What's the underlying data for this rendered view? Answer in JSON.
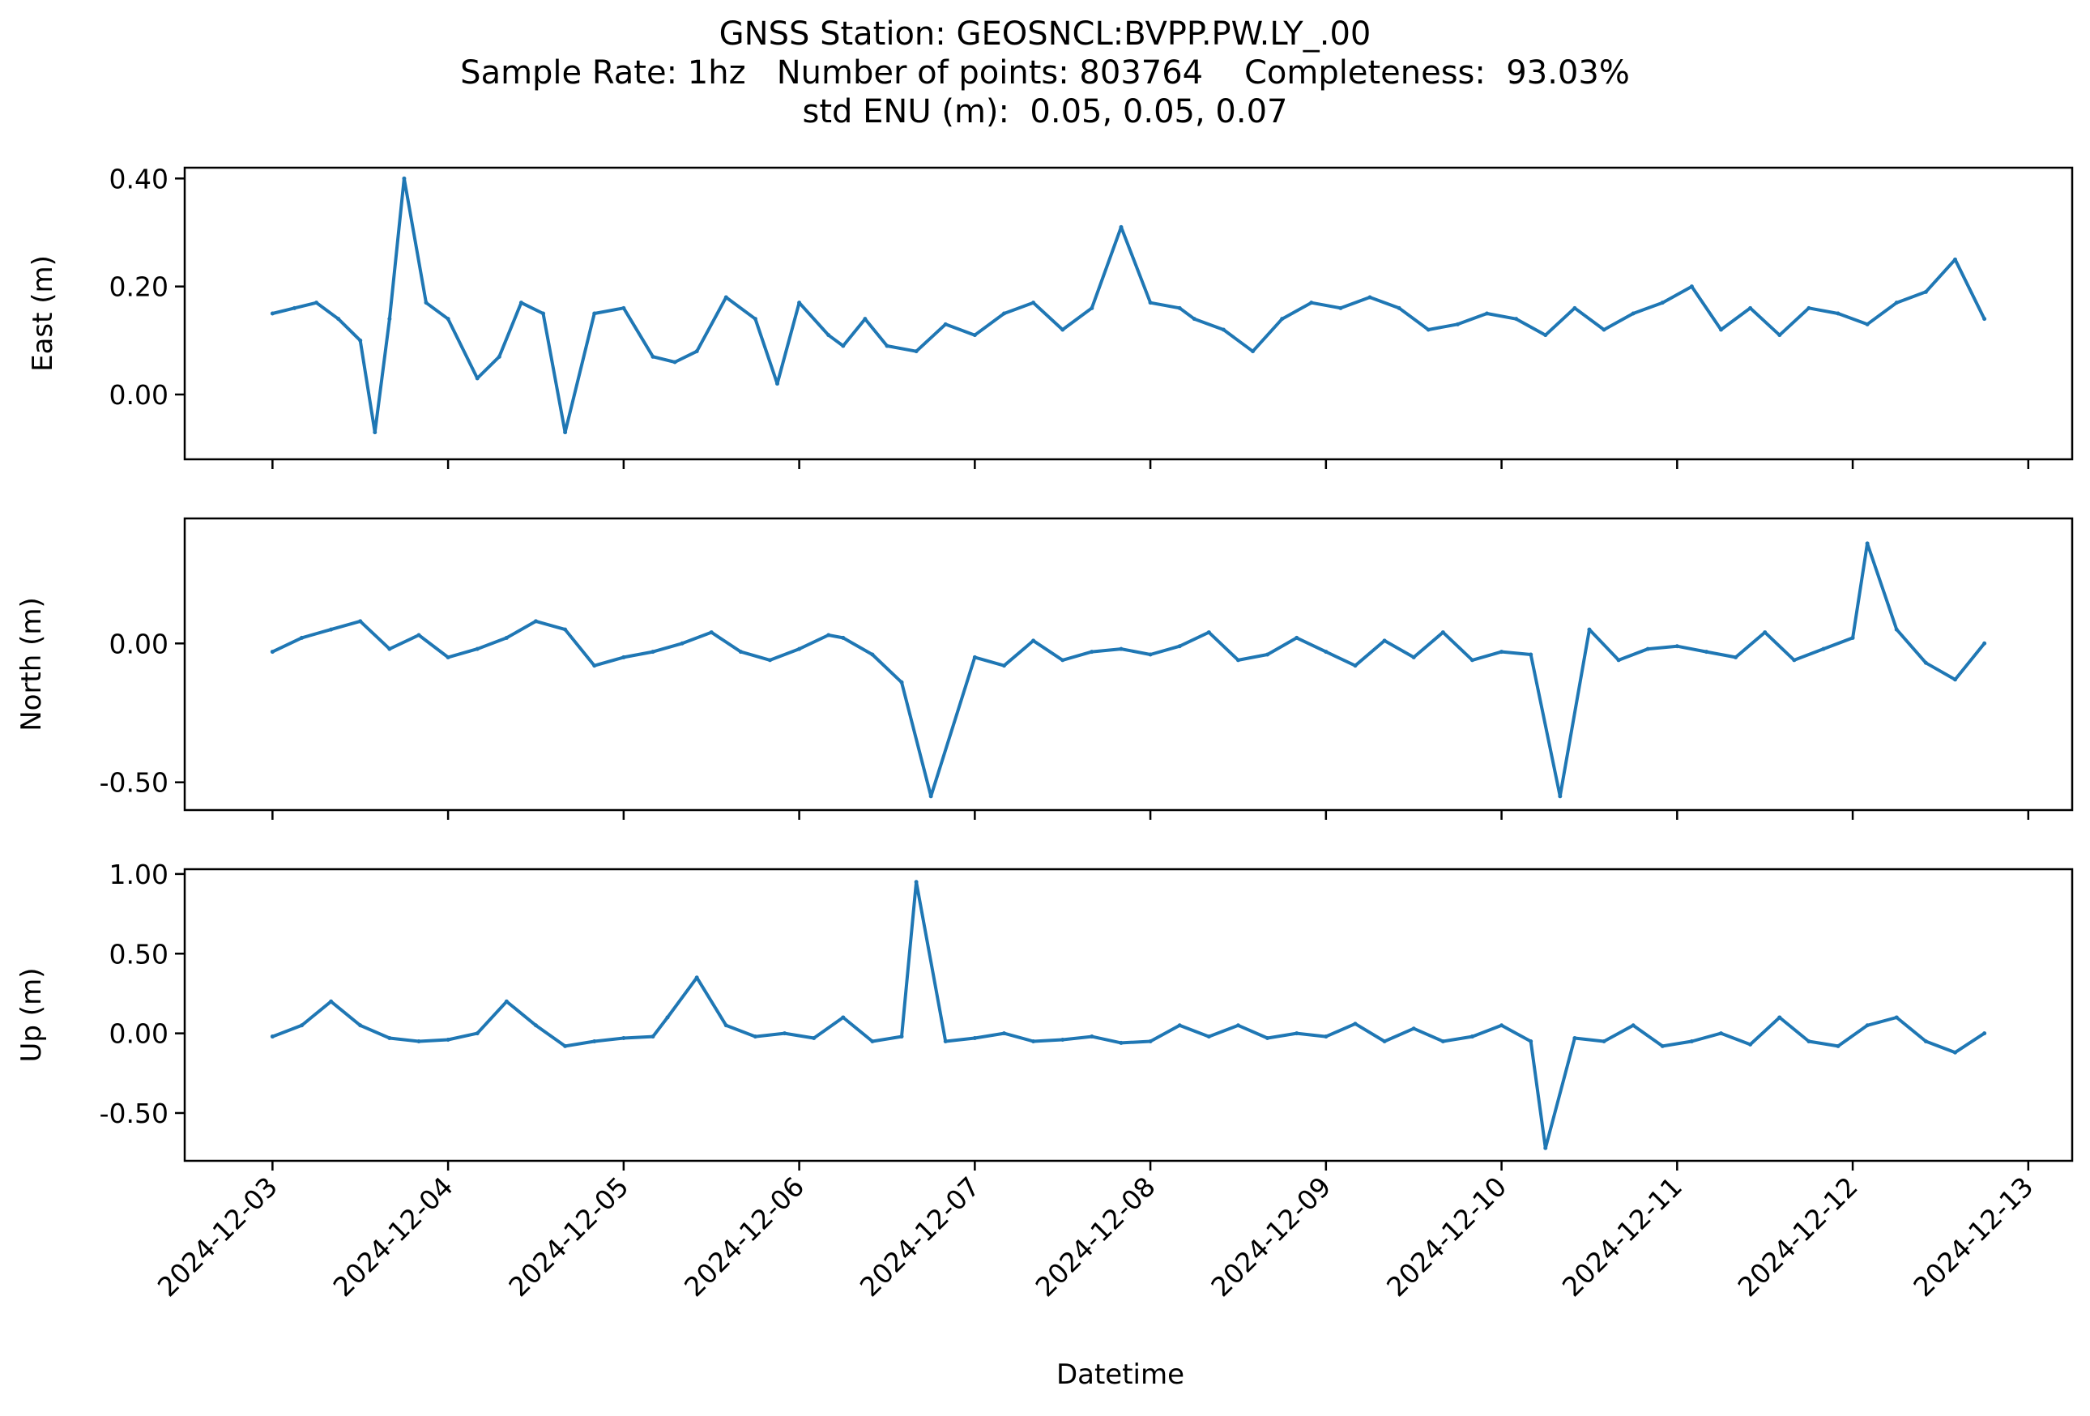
{
  "title_lines": [
    "GNSS Station: GEOSNCL:BVPP.PW.LY_.00",
    "Sample Rate: 1hz   Number of points: 803764    Completeness:  93.03%",
    "std ENU (m):  0.05, 0.05, 0.07"
  ],
  "colors": {
    "series": "#1f77b4",
    "axes": "#000000",
    "background": "#ffffff"
  },
  "chart_data": [
    {
      "type": "line",
      "ylabel": "East (m)",
      "xlabel": "",
      "ylim": [
        -0.12,
        0.42
      ],
      "yticks": [
        0.0,
        0.2,
        0.4
      ],
      "ytick_labels": [
        "0.00",
        "0.20",
        "0.40"
      ],
      "xlim": [
        "2024-12-02T12:00",
        "2024-12-13T06:00"
      ],
      "x_tick_labels_visible": false,
      "series": [
        {
          "x": [
            "2024-12-03T00:00",
            "2024-12-03T03:00",
            "2024-12-03T06:00",
            "2024-12-03T09:00",
            "2024-12-03T12:00",
            "2024-12-03T14:00",
            "2024-12-03T16:00",
            "2024-12-03T18:00",
            "2024-12-03T21:00",
            "2024-12-04T00:00",
            "2024-12-04T04:00",
            "2024-12-04T07:00",
            "2024-12-04T10:00",
            "2024-12-04T13:00",
            "2024-12-04T16:00",
            "2024-12-04T20:00",
            "2024-12-05T00:00",
            "2024-12-05T04:00",
            "2024-12-05T07:00",
            "2024-12-05T10:00",
            "2024-12-05T14:00",
            "2024-12-05T18:00",
            "2024-12-05T21:00",
            "2024-12-06T00:00",
            "2024-12-06T04:00",
            "2024-12-06T06:00",
            "2024-12-06T09:00",
            "2024-12-06T12:00",
            "2024-12-06T16:00",
            "2024-12-06T20:00",
            "2024-12-07T00:00",
            "2024-12-07T04:00",
            "2024-12-07T08:00",
            "2024-12-07T12:00",
            "2024-12-07T16:00",
            "2024-12-07T20:00",
            "2024-12-08T00:00",
            "2024-12-08T04:00",
            "2024-12-08T06:00",
            "2024-12-08T10:00",
            "2024-12-08T14:00",
            "2024-12-08T18:00",
            "2024-12-08T22:00",
            "2024-12-09T02:00",
            "2024-12-09T06:00",
            "2024-12-09T10:00",
            "2024-12-09T14:00",
            "2024-12-09T18:00",
            "2024-12-09T22:00",
            "2024-12-10T02:00",
            "2024-12-10T06:00",
            "2024-12-10T10:00",
            "2024-12-10T14:00",
            "2024-12-10T18:00",
            "2024-12-10T22:00",
            "2024-12-11T02:00",
            "2024-12-11T06:00",
            "2024-12-11T10:00",
            "2024-12-11T14:00",
            "2024-12-11T18:00",
            "2024-12-11T22:00",
            "2024-12-12T02:00",
            "2024-12-12T06:00",
            "2024-12-12T10:00",
            "2024-12-12T14:00",
            "2024-12-12T18:00"
          ],
          "values": [
            0.15,
            0.16,
            0.17,
            0.14,
            0.1,
            -0.07,
            0.14,
            0.4,
            0.17,
            0.14,
            0.03,
            0.07,
            0.17,
            0.15,
            -0.07,
            0.15,
            0.16,
            0.07,
            0.06,
            0.08,
            0.18,
            0.14,
            0.02,
            0.17,
            0.11,
            0.09,
            0.14,
            0.09,
            0.08,
            0.13,
            0.11,
            0.15,
            0.17,
            0.12,
            0.16,
            0.31,
            0.17,
            0.16,
            0.14,
            0.12,
            0.08,
            0.14,
            0.17,
            0.16,
            0.18,
            0.16,
            0.12,
            0.13,
            0.15,
            0.14,
            0.11,
            0.16,
            0.12,
            0.15,
            0.17,
            0.2,
            0.12,
            0.16,
            0.11,
            0.16,
            0.15,
            0.13,
            0.17,
            0.19,
            0.25,
            0.14
          ]
        }
      ]
    },
    {
      "type": "line",
      "ylabel": "North (m)",
      "xlabel": "",
      "ylim": [
        -0.6,
        0.45
      ],
      "yticks": [
        -0.5,
        0.0
      ],
      "ytick_labels": [
        "-0.50",
        "0.00"
      ],
      "xlim": [
        "2024-12-02T12:00",
        "2024-12-13T06:00"
      ],
      "x_tick_labels_visible": false,
      "series": [
        {
          "x": [
            "2024-12-03T00:00",
            "2024-12-03T04:00",
            "2024-12-03T08:00",
            "2024-12-03T12:00",
            "2024-12-03T16:00",
            "2024-12-03T20:00",
            "2024-12-04T00:00",
            "2024-12-04T04:00",
            "2024-12-04T08:00",
            "2024-12-04T12:00",
            "2024-12-04T16:00",
            "2024-12-04T20:00",
            "2024-12-05T00:00",
            "2024-12-05T04:00",
            "2024-12-05T08:00",
            "2024-12-05T12:00",
            "2024-12-05T16:00",
            "2024-12-05T20:00",
            "2024-12-06T00:00",
            "2024-12-06T04:00",
            "2024-12-06T06:00",
            "2024-12-06T10:00",
            "2024-12-06T14:00",
            "2024-12-06T18:00",
            "2024-12-07T00:00",
            "2024-12-07T04:00",
            "2024-12-07T08:00",
            "2024-12-07T12:00",
            "2024-12-07T16:00",
            "2024-12-07T20:00",
            "2024-12-08T00:00",
            "2024-12-08T04:00",
            "2024-12-08T08:00",
            "2024-12-08T12:00",
            "2024-12-08T16:00",
            "2024-12-08T20:00",
            "2024-12-09T00:00",
            "2024-12-09T04:00",
            "2024-12-09T08:00",
            "2024-12-09T12:00",
            "2024-12-09T16:00",
            "2024-12-09T20:00",
            "2024-12-10T00:00",
            "2024-12-10T04:00",
            "2024-12-10T08:00",
            "2024-12-10T12:00",
            "2024-12-10T16:00",
            "2024-12-10T20:00",
            "2024-12-11T00:00",
            "2024-12-11T04:00",
            "2024-12-11T08:00",
            "2024-12-11T12:00",
            "2024-12-11T16:00",
            "2024-12-11T20:00",
            "2024-12-12T00:00",
            "2024-12-12T02:00",
            "2024-12-12T06:00",
            "2024-12-12T10:00",
            "2024-12-12T14:00",
            "2024-12-12T18:00"
          ],
          "values": [
            -0.03,
            0.02,
            0.05,
            0.08,
            -0.02,
            0.03,
            -0.05,
            -0.02,
            0.02,
            0.08,
            0.05,
            -0.08,
            -0.05,
            -0.03,
            0.0,
            0.04,
            -0.03,
            -0.06,
            -0.02,
            0.03,
            0.02,
            -0.04,
            -0.14,
            -0.55,
            -0.05,
            -0.08,
            0.01,
            -0.06,
            -0.03,
            -0.02,
            -0.04,
            -0.01,
            0.04,
            -0.06,
            -0.04,
            0.02,
            -0.03,
            -0.08,
            0.01,
            -0.05,
            0.04,
            -0.06,
            -0.03,
            -0.04,
            -0.55,
            0.05,
            -0.06,
            -0.02,
            -0.01,
            -0.03,
            -0.05,
            0.04,
            -0.06,
            -0.02,
            0.02,
            0.36,
            0.05,
            -0.07,
            -0.13,
            0.0
          ]
        }
      ]
    },
    {
      "type": "line",
      "ylabel": "Up (m)",
      "xlabel": "Datetime",
      "ylim": [
        -0.8,
        1.03
      ],
      "yticks": [
        -0.5,
        0.0,
        0.5,
        1.0
      ],
      "ytick_labels": [
        "-0.50",
        "0.00",
        "0.50",
        "1.00"
      ],
      "xlim": [
        "2024-12-02T12:00",
        "2024-12-13T06:00"
      ],
      "x_ticks": [
        "2024-12-03",
        "2024-12-04",
        "2024-12-05",
        "2024-12-06",
        "2024-12-07",
        "2024-12-08",
        "2024-12-09",
        "2024-12-10",
        "2024-12-11",
        "2024-12-12",
        "2024-12-13"
      ],
      "x_tick_labels": [
        "2024-12-03",
        "2024-12-04",
        "2024-12-05",
        "2024-12-06",
        "2024-12-07",
        "2024-12-08",
        "2024-12-09",
        "2024-12-10",
        "2024-12-11",
        "2024-12-12",
        "2024-12-13"
      ],
      "series": [
        {
          "x": [
            "2024-12-03T00:00",
            "2024-12-03T04:00",
            "2024-12-03T08:00",
            "2024-12-03T12:00",
            "2024-12-03T16:00",
            "2024-12-03T20:00",
            "2024-12-04T00:00",
            "2024-12-04T04:00",
            "2024-12-04T08:00",
            "2024-12-04T12:00",
            "2024-12-04T16:00",
            "2024-12-04T20:00",
            "2024-12-05T00:00",
            "2024-12-05T04:00",
            "2024-12-05T06:00",
            "2024-12-05T10:00",
            "2024-12-05T14:00",
            "2024-12-05T18:00",
            "2024-12-05T22:00",
            "2024-12-06T02:00",
            "2024-12-06T06:00",
            "2024-12-06T10:00",
            "2024-12-06T14:00",
            "2024-12-06T16:00",
            "2024-12-06T20:00",
            "2024-12-07T00:00",
            "2024-12-07T04:00",
            "2024-12-07T08:00",
            "2024-12-07T12:00",
            "2024-12-07T16:00",
            "2024-12-07T20:00",
            "2024-12-08T00:00",
            "2024-12-08T04:00",
            "2024-12-08T08:00",
            "2024-12-08T12:00",
            "2024-12-08T16:00",
            "2024-12-08T20:00",
            "2024-12-09T00:00",
            "2024-12-09T04:00",
            "2024-12-09T08:00",
            "2024-12-09T12:00",
            "2024-12-09T16:00",
            "2024-12-09T20:00",
            "2024-12-10T00:00",
            "2024-12-10T04:00",
            "2024-12-10T06:00",
            "2024-12-10T10:00",
            "2024-12-10T14:00",
            "2024-12-10T18:00",
            "2024-12-10T22:00",
            "2024-12-11T02:00",
            "2024-12-11T06:00",
            "2024-12-11T10:00",
            "2024-12-11T14:00",
            "2024-12-11T18:00",
            "2024-12-11T22:00",
            "2024-12-12T02:00",
            "2024-12-12T06:00",
            "2024-12-12T10:00",
            "2024-12-12T14:00",
            "2024-12-12T18:00"
          ],
          "values": [
            -0.02,
            0.05,
            0.2,
            0.05,
            -0.03,
            -0.05,
            -0.04,
            0.0,
            0.2,
            0.05,
            -0.08,
            -0.05,
            -0.03,
            -0.02,
            0.1,
            0.35,
            0.05,
            -0.02,
            0.0,
            -0.03,
            0.1,
            -0.05,
            -0.02,
            0.95,
            -0.05,
            -0.03,
            0.0,
            -0.05,
            -0.04,
            -0.02,
            -0.06,
            -0.05,
            0.05,
            -0.02,
            0.05,
            -0.03,
            0.0,
            -0.02,
            0.06,
            -0.05,
            0.03,
            -0.05,
            -0.02,
            0.05,
            -0.05,
            -0.72,
            -0.03,
            -0.05,
            0.05,
            -0.08,
            -0.05,
            0.0,
            -0.07,
            0.1,
            -0.05,
            -0.08,
            0.05,
            0.1,
            -0.05,
            -0.12,
            0.0
          ]
        }
      ]
    }
  ]
}
